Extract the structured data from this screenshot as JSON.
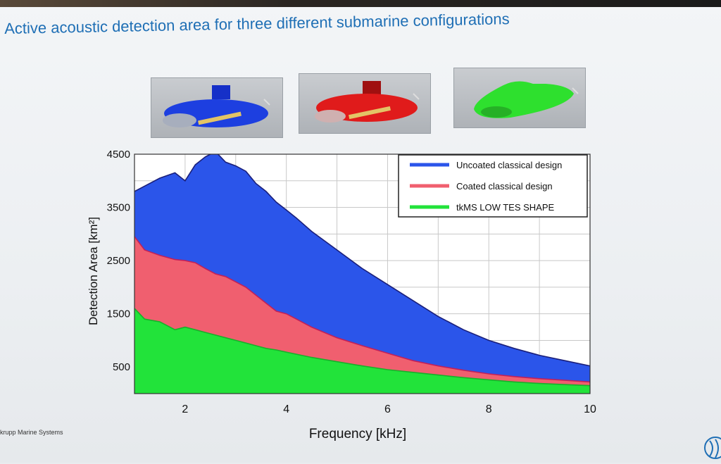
{
  "slide": {
    "title": "Active acoustic detection area for three different submarine configurations",
    "footer": "krupp Marine Systems"
  },
  "images": [
    {
      "name": "submarine-blue",
      "color": "#1d3fe0"
    },
    {
      "name": "submarine-red",
      "color": "#e01b1b"
    },
    {
      "name": "submarine-green",
      "color": "#2ee02e"
    }
  ],
  "chart_data": {
    "type": "area",
    "xlabel": "Frequency [kHz]",
    "ylabel": "Detection Area [km²]",
    "xlim": [
      1,
      10
    ],
    "ylim": [
      0,
      4500
    ],
    "xticks": [
      2,
      4,
      6,
      8,
      10
    ],
    "yticks": [
      500,
      1500,
      2500,
      3500,
      4500
    ],
    "grid": true,
    "legend_position": "top-right",
    "x": [
      1.0,
      1.2,
      1.5,
      1.8,
      2.0,
      2.2,
      2.4,
      2.6,
      2.8,
      3.0,
      3.2,
      3.4,
      3.6,
      3.8,
      4.0,
      4.2,
      4.5,
      5.0,
      5.5,
      6.0,
      6.5,
      7.0,
      7.5,
      8.0,
      8.5,
      9.0,
      9.5,
      10.0
    ],
    "series": [
      {
        "name": "Uncoated classical design",
        "color": "#2b55ea",
        "values": [
          3800,
          3900,
          4050,
          4150,
          4000,
          4300,
          4450,
          4550,
          4350,
          4280,
          4180,
          3950,
          3800,
          3600,
          3450,
          3300,
          3050,
          2700,
          2350,
          2050,
          1750,
          1450,
          1200,
          1000,
          850,
          720,
          620,
          520
        ]
      },
      {
        "name": "Coated classical design",
        "color": "#f05f6f",
        "values": [
          2950,
          2700,
          2600,
          2520,
          2500,
          2460,
          2350,
          2250,
          2200,
          2100,
          2000,
          1850,
          1700,
          1550,
          1500,
          1400,
          1250,
          1050,
          900,
          760,
          620,
          520,
          440,
          370,
          320,
          280,
          250,
          220
        ]
      },
      {
        "name": "tkMS LOW TES SHAPE",
        "color": "#22e33a",
        "values": [
          1600,
          1400,
          1350,
          1200,
          1250,
          1200,
          1150,
          1100,
          1050,
          1000,
          950,
          900,
          850,
          820,
          780,
          740,
          680,
          600,
          520,
          450,
          400,
          350,
          300,
          260,
          220,
          190,
          170,
          150
        ]
      }
    ]
  }
}
